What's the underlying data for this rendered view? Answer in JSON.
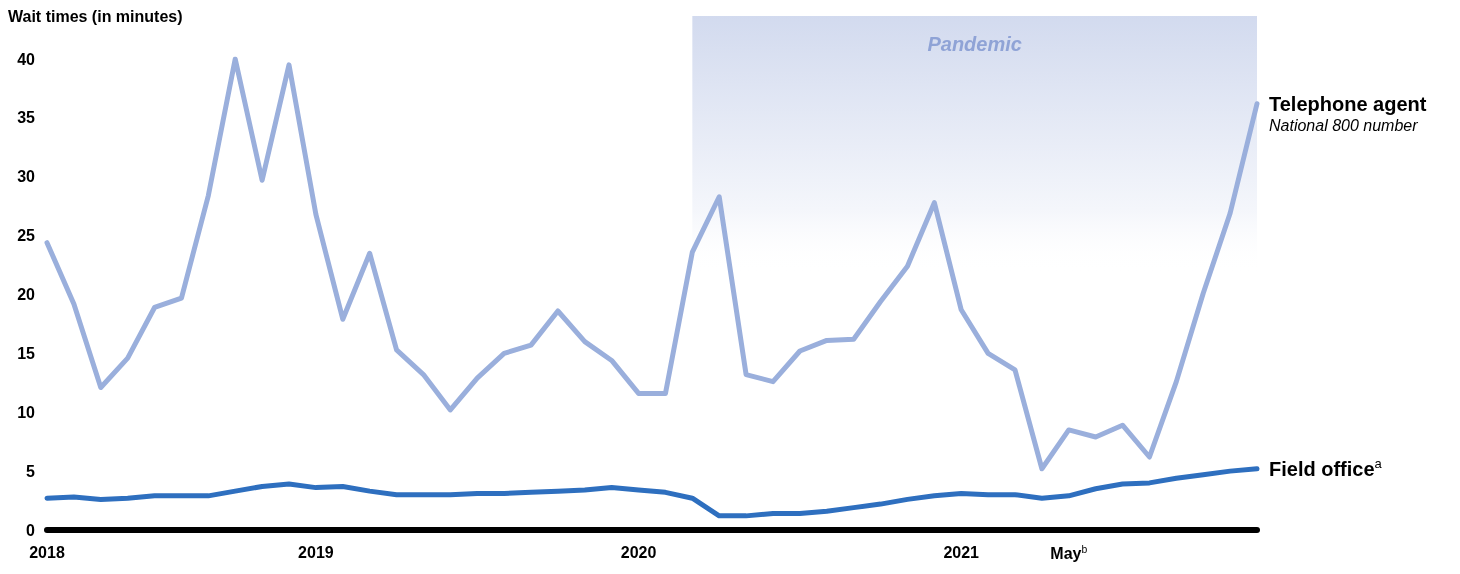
{
  "chart_data": {
    "type": "line",
    "ylabel": "Wait times (in minutes)",
    "categories": [
      "2018",
      null,
      null,
      null,
      null,
      null,
      null,
      null,
      null,
      null,
      "2019",
      null,
      null,
      null,
      null,
      null,
      null,
      null,
      null,
      null,
      null,
      null,
      "2020",
      null,
      null,
      null,
      null,
      null,
      null,
      null,
      null,
      null,
      null,
      null,
      "2021",
      null,
      null,
      null,
      "May$^{b}$",
      null,
      null,
      null,
      null,
      null,
      null,
      null
    ],
    "series": [
      {
        "name": "Telephone agent",
        "color": "#9aafdc",
        "values": [
          24.4,
          19.2,
          12.1,
          14.6,
          18.9,
          19.7,
          28.4,
          40,
          29.7,
          39.5,
          26.8,
          17.9,
          23.5,
          15.3,
          13.2,
          10.2,
          12.9,
          15,
          15.7,
          18.6,
          16,
          14.4,
          11.6,
          11.6,
          23.6,
          28.3,
          13.2,
          12.6,
          15.2,
          16.1,
          16.2,
          19.4,
          22.4,
          27.8,
          18.7,
          15,
          13.6,
          5.2,
          8.5,
          7.9,
          8.9,
          6.2,
          12.6,
          20.1,
          26.9,
          36.2
        ]
      },
      {
        "name": "Field office$^{a}$",
        "color": "#2e6fbf",
        "values": [
          2.7,
          2.8,
          2.6,
          2.7,
          2.9,
          2.9,
          2.9,
          3.3,
          3.7,
          3.9,
          3.6,
          3.7,
          3.3,
          3.0,
          3.0,
          3.0,
          3.1,
          3.1,
          3.2,
          3.3,
          3.4,
          3.6,
          3.4,
          3.2,
          2.7,
          1.2,
          1.2,
          1.4,
          1.4,
          1.6,
          1.9,
          2.2,
          2.6,
          2.9,
          3.1,
          3.0,
          3.0,
          2.7,
          2.9,
          3.5,
          3.9,
          4.0,
          4.4,
          4.7,
          5.0,
          5.2
        ]
      }
    ],
    "annotations": [
      "National 800 number",
      "Pandemic"
    ],
    "ylim": [
      0,
      40
    ],
    "yticks": [
      0,
      5,
      10,
      15,
      20,
      25,
      30,
      35,
      40
    ],
    "grid": false,
    "legend": false,
    "marker": "none",
    "line_style": "solid"
  }
}
